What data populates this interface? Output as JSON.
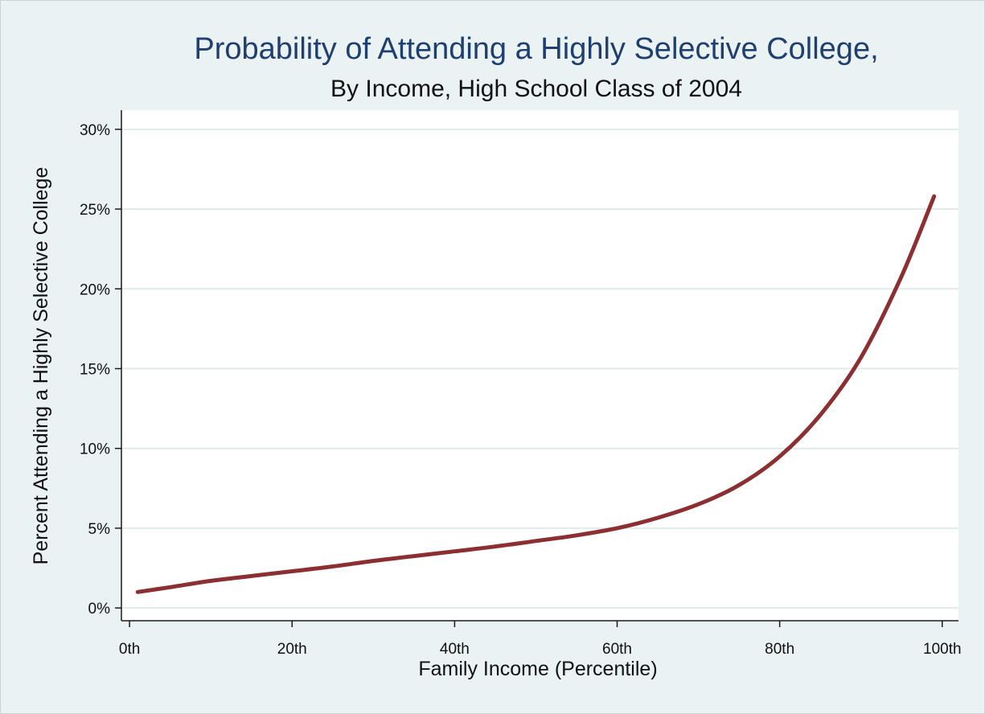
{
  "chart_data": {
    "type": "line",
    "title": "Probability of Attending a Highly Selective College,",
    "subtitle": "By Income, High School Class of 2004",
    "xlabel": "Family Income (Percentile)",
    "ylabel": "Percent Attending a Highly Selective College",
    "xlim": [
      -1,
      102
    ],
    "ylim": [
      -0.8,
      31.2
    ],
    "x_ticks": [
      0,
      20,
      40,
      60,
      80,
      100
    ],
    "x_tick_labels": [
      "0th",
      "20th",
      "40th",
      "60th",
      "80th",
      "100th"
    ],
    "y_ticks": [
      0,
      5,
      10,
      15,
      20,
      25,
      30
    ],
    "y_tick_labels": [
      "0%",
      "5%",
      "10%",
      "15%",
      "20%",
      "25%",
      "30%"
    ],
    "grid": true,
    "line_color": "#8b2f32",
    "series": [
      {
        "x": [
          1,
          5,
          10,
          15,
          20,
          25,
          30,
          35,
          40,
          45,
          50,
          55,
          60,
          65,
          70,
          75,
          80,
          85,
          90,
          95,
          99
        ],
        "values": [
          1.0,
          1.3,
          1.7,
          2.0,
          2.3,
          2.6,
          2.95,
          3.25,
          3.55,
          3.85,
          4.2,
          4.55,
          5.0,
          5.65,
          6.5,
          7.7,
          9.5,
          12.1,
          15.7,
          20.8,
          25.8
        ]
      }
    ]
  }
}
